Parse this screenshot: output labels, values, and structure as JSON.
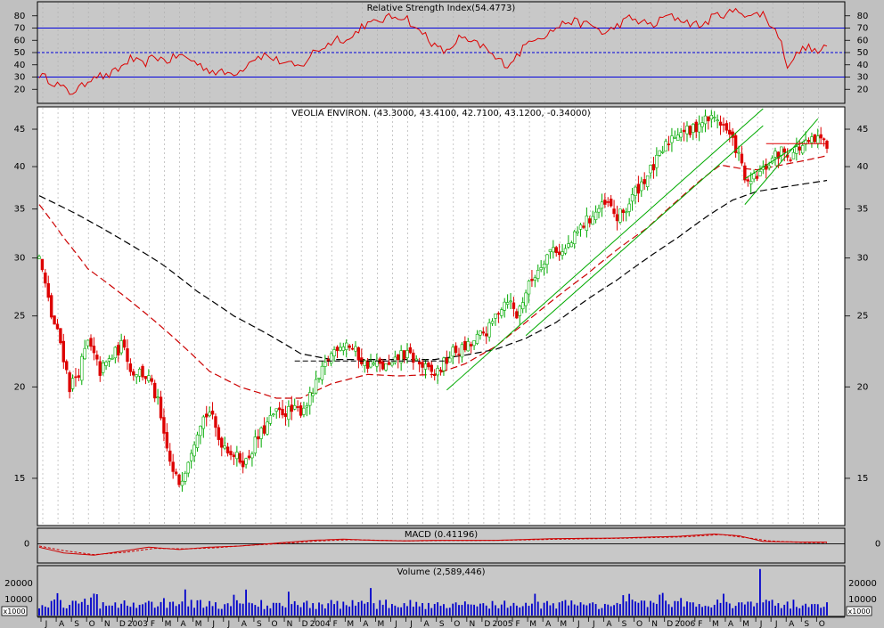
{
  "chart_data": [
    {
      "panel": "rsi",
      "type": "line",
      "title": "Relative Strength Index(54.4773)",
      "ylim": [
        10,
        90
      ],
      "ticks": [
        20,
        30,
        40,
        50,
        60,
        70,
        80
      ],
      "levels": [
        30,
        50,
        70
      ],
      "color": "#dd0000",
      "keypoints": [
        [
          0,
          32
        ],
        [
          6,
          24
        ],
        [
          10,
          17
        ],
        [
          14,
          22
        ],
        [
          18,
          32
        ],
        [
          22,
          30
        ],
        [
          26,
          36
        ],
        [
          30,
          45
        ],
        [
          34,
          40
        ],
        [
          38,
          47
        ],
        [
          42,
          43
        ],
        [
          46,
          48
        ],
        [
          50,
          44
        ],
        [
          54,
          38
        ],
        [
          58,
          34
        ],
        [
          62,
          33
        ],
        [
          66,
          35
        ],
        [
          70,
          45
        ],
        [
          74,
          48
        ],
        [
          78,
          44
        ],
        [
          82,
          40
        ],
        [
          86,
          38
        ],
        [
          90,
          50
        ],
        [
          94,
          55
        ],
        [
          98,
          62
        ],
        [
          102,
          60
        ],
        [
          106,
          72
        ],
        [
          110,
          74
        ],
        [
          114,
          78
        ],
        [
          118,
          80
        ],
        [
          121,
          78
        ],
        [
          124,
          68
        ],
        [
          127,
          65
        ],
        [
          130,
          55
        ],
        [
          134,
          50
        ],
        [
          138,
          62
        ],
        [
          142,
          58
        ],
        [
          146,
          55
        ],
        [
          150,
          45
        ],
        [
          154,
          40
        ],
        [
          158,
          50
        ],
        [
          162,
          62
        ],
        [
          166,
          64
        ],
        [
          170,
          70
        ],
        [
          174,
          76
        ],
        [
          178,
          74
        ],
        [
          182,
          72
        ],
        [
          186,
          65
        ],
        [
          190,
          72
        ],
        [
          194,
          78
        ],
        [
          198,
          75
        ],
        [
          202,
          72
        ],
        [
          206,
          80
        ],
        [
          210,
          78
        ],
        [
          214,
          74
        ],
        [
          218,
          72
        ],
        [
          222,
          80
        ],
        [
          226,
          82
        ],
        [
          230,
          84
        ],
        [
          234,
          80
        ],
        [
          238,
          82
        ],
        [
          240,
          74
        ],
        [
          243,
          65
        ],
        [
          246,
          40
        ],
        [
          249,
          48
        ],
        [
          252,
          55
        ],
        [
          256,
          50
        ],
        [
          260,
          56
        ],
        [
          264,
          54
        ]
      ]
    },
    {
      "panel": "price",
      "type": "candlestick",
      "title": "VEOLIA ENVIRON. (43.3000, 43.4100, 42.7100, 43.1200, -0.34000)",
      "scale": "log",
      "ylim": [
        13,
        48
      ],
      "ticks": [
        15,
        20,
        25,
        30,
        35,
        40,
        45
      ],
      "close_keypoints": [
        [
          0,
          30
        ],
        [
          4,
          25
        ],
        [
          7,
          23
        ],
        [
          10,
          20
        ],
        [
          13,
          21
        ],
        [
          16,
          23
        ],
        [
          20,
          21
        ],
        [
          24,
          22
        ],
        [
          28,
          23
        ],
        [
          30,
          21
        ],
        [
          33,
          21
        ],
        [
          36,
          20.5
        ],
        [
          39,
          19
        ],
        [
          41,
          17
        ],
        [
          44,
          15.2
        ],
        [
          46,
          14.8
        ],
        [
          48,
          15.5
        ],
        [
          50,
          16.5
        ],
        [
          53,
          18
        ],
        [
          56,
          18.5
        ],
        [
          59,
          17
        ],
        [
          62,
          16.5
        ],
        [
          65,
          16
        ],
        [
          68,
          15.8
        ],
        [
          71,
          16.8
        ],
        [
          74,
          17.5
        ],
        [
          77,
          18.3
        ],
        [
          80,
          18.5
        ],
        [
          83,
          18.5
        ],
        [
          86,
          18.6
        ],
        [
          89,
          19.3
        ],
        [
          92,
          20.5
        ],
        [
          95,
          21.8
        ],
        [
          98,
          22.8
        ],
        [
          101,
          23
        ],
        [
          104,
          22.3
        ],
        [
          107,
          21.5
        ],
        [
          110,
          21.5
        ],
        [
          113,
          21.3
        ],
        [
          116,
          21.3
        ],
        [
          119,
          22.2
        ],
        [
          122,
          22
        ],
        [
          125,
          21.5
        ],
        [
          128,
          21
        ],
        [
          130,
          20.8
        ],
        [
          133,
          21.5
        ],
        [
          136,
          22.3
        ],
        [
          139,
          22.5
        ],
        [
          142,
          22.8
        ],
        [
          145,
          23.5
        ],
        [
          148,
          24
        ],
        [
          151,
          25.5
        ],
        [
          154,
          26.5
        ],
        [
          157,
          25
        ],
        [
          160,
          27
        ],
        [
          163,
          28.5
        ],
        [
          166,
          30
        ],
        [
          169,
          31
        ],
        [
          172,
          30.5
        ],
        [
          175,
          31.5
        ],
        [
          178,
          33
        ],
        [
          181,
          34
        ],
        [
          184,
          35
        ],
        [
          187,
          35.5
        ],
        [
          190,
          34
        ],
        [
          193,
          35
        ],
        [
          196,
          37
        ],
        [
          199,
          38.5
        ],
        [
          202,
          40
        ],
        [
          205,
          42
        ],
        [
          208,
          44
        ],
        [
          211,
          45
        ],
        [
          214,
          44.5
        ],
        [
          217,
          46
        ],
        [
          220,
          46.5
        ],
        [
          223,
          46.5
        ],
        [
          225,
          45.5
        ],
        [
          227,
          44
        ],
        [
          229,
          42.5
        ],
        [
          231,
          40
        ],
        [
          233,
          37.5
        ],
        [
          235,
          38.5
        ],
        [
          238,
          39.5
        ],
        [
          241,
          41
        ],
        [
          244,
          42
        ],
        [
          247,
          41.5
        ],
        [
          250,
          42.5
        ],
        [
          253,
          43
        ],
        [
          256,
          43.5
        ],
        [
          259,
          43.1
        ]
      ],
      "ma_long_keypoints": [
        [
          0,
          36.5
        ],
        [
          12,
          34.5
        ],
        [
          26,
          32
        ],
        [
          40,
          29.5
        ],
        [
          52,
          27
        ],
        [
          64,
          25
        ],
        [
          76,
          23.5
        ],
        [
          86,
          22.2
        ],
        [
          96,
          21.8
        ],
        [
          106,
          21.8
        ],
        [
          118,
          21.8
        ],
        [
          130,
          21.8
        ],
        [
          140,
          22.1
        ],
        [
          150,
          22.5
        ],
        [
          160,
          23.3
        ],
        [
          170,
          24.5
        ],
        [
          180,
          26.3
        ],
        [
          190,
          28
        ],
        [
          200,
          30
        ],
        [
          210,
          32
        ],
        [
          220,
          34.3
        ],
        [
          228,
          36
        ],
        [
          236,
          37
        ],
        [
          250,
          37.8
        ],
        [
          259,
          38.3
        ]
      ],
      "ma_short_keypoints": [
        [
          0,
          35.5
        ],
        [
          8,
          32
        ],
        [
          16,
          29
        ],
        [
          26,
          27
        ],
        [
          36,
          25
        ],
        [
          46,
          23
        ],
        [
          56,
          21
        ],
        [
          66,
          20
        ],
        [
          78,
          19.3
        ],
        [
          86,
          19.3
        ],
        [
          96,
          20.2
        ],
        [
          108,
          20.8
        ],
        [
          118,
          20.7
        ],
        [
          130,
          20.8
        ],
        [
          140,
          21.5
        ],
        [
          150,
          22.7
        ],
        [
          160,
          24.5
        ],
        [
          170,
          26.5
        ],
        [
          180,
          28.5
        ],
        [
          190,
          30.8
        ],
        [
          200,
          33
        ],
        [
          210,
          36
        ],
        [
          218,
          38.5
        ],
        [
          224,
          40.2
        ],
        [
          230,
          39.8
        ],
        [
          236,
          39.6
        ],
        [
          244,
          40.2
        ],
        [
          252,
          40.8
        ],
        [
          259,
          41.4
        ]
      ],
      "trendlines": [
        {
          "from": [
            134,
            19.8
          ],
          "to": [
            238,
            48
          ],
          "color": "#00aa00"
        },
        {
          "from": [
            160,
            23.5
          ],
          "to": [
            238,
            45.5
          ],
          "color": "#00aa00"
        },
        {
          "from": [
            232,
            35.5
          ],
          "to": [
            256,
            46.5
          ],
          "color": "#00aa00"
        },
        {
          "from": [
            232,
            38.5
          ],
          "to": [
            252,
            43.5
          ],
          "color": "#00aa00"
        },
        {
          "from": [
            84,
            21.7
          ],
          "to": [
            134,
            21.7
          ],
          "color": "#000000",
          "dash": true
        },
        {
          "from": [
            239,
            43
          ],
          "to": [
            259,
            43
          ],
          "color": "#dd0000"
        }
      ]
    },
    {
      "panel": "macd",
      "type": "line",
      "title": "MACD (0.41196)",
      "ylim": [
        -1.6,
        1.2
      ],
      "ticks": [
        0
      ],
      "macd_keypoints": [
        [
          0,
          -0.3
        ],
        [
          8,
          -0.8
        ],
        [
          18,
          -1.0
        ],
        [
          26,
          -0.7
        ],
        [
          36,
          -0.3
        ],
        [
          46,
          -0.5
        ],
        [
          56,
          -0.3
        ],
        [
          66,
          -0.2
        ],
        [
          80,
          0.1
        ],
        [
          90,
          0.3
        ],
        [
          100,
          0.4
        ],
        [
          110,
          0.3
        ],
        [
          120,
          0.25
        ],
        [
          130,
          0.3
        ],
        [
          150,
          0.3
        ],
        [
          170,
          0.45
        ],
        [
          190,
          0.5
        ],
        [
          210,
          0.65
        ],
        [
          222,
          0.85
        ],
        [
          230,
          0.7
        ],
        [
          238,
          0.2
        ],
        [
          250,
          0.15
        ],
        [
          259,
          0.15
        ]
      ],
      "signal_keypoints": [
        [
          0,
          -0.2
        ],
        [
          8,
          -0.6
        ],
        [
          18,
          -0.95
        ],
        [
          28,
          -0.75
        ],
        [
          38,
          -0.4
        ],
        [
          48,
          -0.45
        ],
        [
          58,
          -0.35
        ],
        [
          68,
          -0.15
        ],
        [
          82,
          0.05
        ],
        [
          92,
          0.25
        ],
        [
          102,
          0.35
        ],
        [
          112,
          0.3
        ],
        [
          122,
          0.25
        ],
        [
          132,
          0.28
        ],
        [
          152,
          0.3
        ],
        [
          172,
          0.4
        ],
        [
          192,
          0.48
        ],
        [
          212,
          0.6
        ],
        [
          224,
          0.8
        ],
        [
          232,
          0.55
        ],
        [
          240,
          0.25
        ],
        [
          252,
          0.1
        ],
        [
          259,
          0.1
        ]
      ]
    },
    {
      "panel": "volume",
      "type": "bar",
      "title": "Volume (2,589,446)",
      "ylim": [
        0,
        30000
      ],
      "ticks": [
        10000,
        20000
      ],
      "unit_label": "x1000",
      "color": "#0000cc"
    }
  ],
  "x_axis": {
    "months": [
      "J",
      "A",
      "S",
      "O",
      "N",
      "D",
      "2003",
      "F",
      "M",
      "A",
      "M",
      "J",
      "J",
      "A",
      "S",
      "O",
      "N",
      "D",
      "2004",
      "F",
      "M",
      "A",
      "M",
      "J",
      "J",
      "A",
      "S",
      "O",
      "N",
      "D",
      "2005",
      "F",
      "M",
      "A",
      "M",
      "J",
      "J",
      "A",
      "S",
      "O",
      "N",
      "D",
      "2006",
      "F",
      "M",
      "A",
      "M",
      "J",
      "J",
      "A",
      "S",
      "O"
    ],
    "bars_per_month": 5,
    "total_bars": 260
  }
}
